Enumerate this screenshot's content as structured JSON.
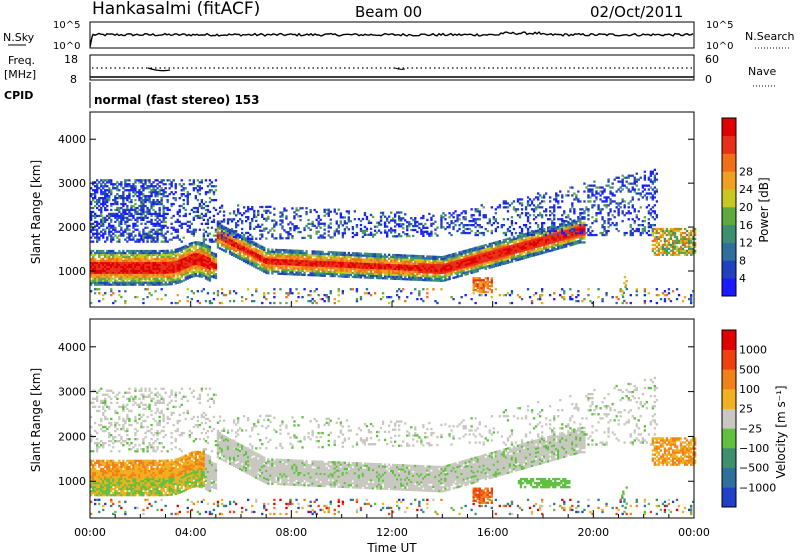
{
  "header": {
    "station": "Hankasalmi (fitACF)",
    "beam": "Beam 00",
    "date": "02/Oct/2011"
  },
  "nsky_panel": {
    "left_label": "N.Sky",
    "right_label": "N.Search",
    "left_ticks": [
      "10^5",
      "10^0"
    ],
    "right_ticks": [
      "10^5",
      "10^0"
    ]
  },
  "freq_panel": {
    "left_label_1": "Freq.",
    "left_label_2": "[MHz]",
    "right_label": "Nave",
    "left_ticks": [
      "18",
      "8"
    ],
    "right_ticks": [
      "60",
      "0"
    ]
  },
  "cpid": {
    "label": "CPID",
    "value": "normal (fast stereo) 153"
  },
  "chart_data": [
    {
      "type": "heatmap",
      "name": "power-panel",
      "ylabel": "Slant Range [km]",
      "xlabel": "",
      "x_range_hours": [
        0,
        24
      ],
      "ylim": [
        180,
        4620
      ],
      "yticks": [
        "1000",
        "2000",
        "3000",
        "4000"
      ],
      "ytick_values": [
        1000,
        2000,
        3000,
        4000
      ],
      "colorbar": {
        "label": "Power [dB]",
        "ticks": [
          "4",
          "8",
          "12",
          "16",
          "20",
          "24",
          "28"
        ],
        "colors": [
          "#1a1aff",
          "#2040c0",
          "#2f6fa0",
          "#3c9070",
          "#5fa840",
          "#c8c820",
          "#f0a020",
          "#f07018",
          "#e83018",
          "#e00000"
        ]
      },
      "features": [
        {
          "feature": "main-echo-band",
          "time_hours": [
            0,
            19.5
          ],
          "range_km_center_start": 1050,
          "range_km_center_mid": 1000,
          "range_km_center_end": 1900,
          "power_db_peak": 28
        },
        {
          "feature": "upper-band",
          "time_hours": [
            0,
            22
          ],
          "range_km": [
            1700,
            3000
          ],
          "power_db": 6
        },
        {
          "feature": "late-patch",
          "time_hours": [
            22.3,
            24
          ],
          "range_km": [
            1400,
            1900
          ],
          "power_db": 18
        }
      ]
    },
    {
      "type": "heatmap",
      "name": "velocity-panel",
      "ylabel": "Slant Range [km]",
      "xlabel": "Time UT",
      "x_range_hours": [
        0,
        24
      ],
      "ylim": [
        180,
        4620
      ],
      "yticks": [
        "1000",
        "2000",
        "3000",
        "4000"
      ],
      "ytick_values": [
        1000,
        2000,
        3000,
        4000
      ],
      "xticks": [
        "00:00",
        "04:00",
        "08:00",
        "12:00",
        "16:00",
        "20:00",
        "00:00"
      ],
      "xtick_values": [
        0,
        4,
        8,
        12,
        16,
        20,
        24
      ],
      "colorbar": {
        "label": "Velocity [m s⁻¹]",
        "ticks": [
          "1000",
          "500",
          "100",
          "25",
          "−25",
          "−100",
          "−500",
          "−1000"
        ],
        "colors": [
          "#2040c8",
          "#2f6fa0",
          "#3c9070",
          "#60c040",
          "#c8c8c0",
          "#f0b020",
          "#f08018",
          "#f04010",
          "#e00000"
        ]
      }
    }
  ]
}
